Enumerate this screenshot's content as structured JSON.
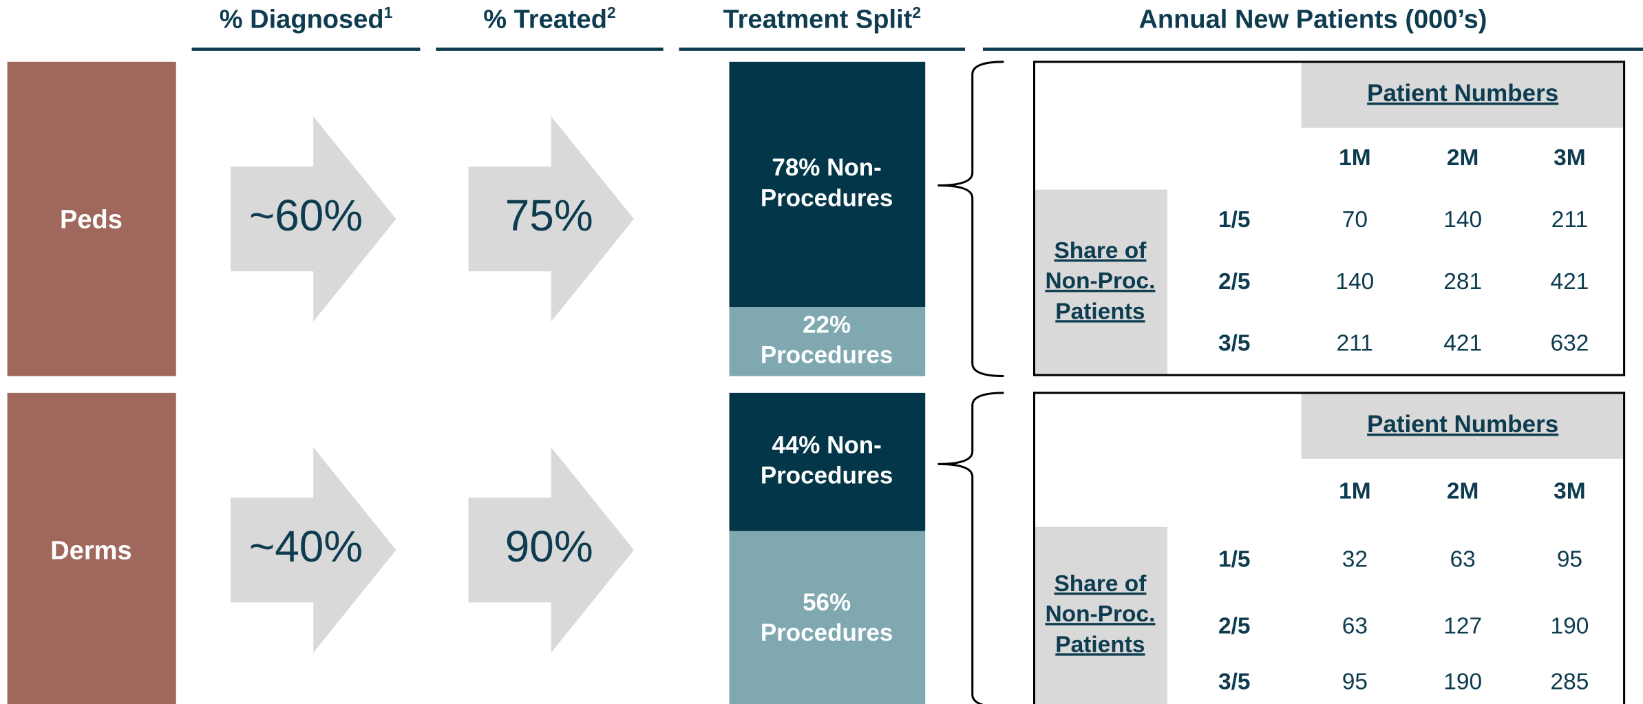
{
  "headers": [
    {
      "text": "% Diagnosed",
      "note": "1"
    },
    {
      "text": "% Treated",
      "note": "2"
    },
    {
      "text": "Treatment Split",
      "note": "2"
    },
    {
      "text": "Annual New Patients (000’s)"
    }
  ],
  "rows": [
    {
      "label": "Peds",
      "diagnosed": "~60%",
      "treated": "75%",
      "split": [
        {
          "value": 78,
          "lines": [
            "78% Non-",
            "Procedures"
          ]
        },
        {
          "value": 22,
          "lines": [
            "22%",
            "Procedures"
          ]
        }
      ],
      "table": {
        "title": "Patient Numbers",
        "columns": [
          "1M",
          "2M",
          "3M"
        ],
        "row_header": [
          "Share of",
          "Non-Proc.",
          "Patients"
        ],
        "rows": [
          {
            "label": "1/5",
            "values": [
              70,
              140,
              211
            ]
          },
          {
            "label": "2/5",
            "values": [
              140,
              281,
              421
            ]
          },
          {
            "label": "3/5",
            "values": [
              211,
              421,
              632
            ]
          }
        ]
      }
    },
    {
      "label": "Derms",
      "diagnosed": "~40%",
      "treated": "90%",
      "split": [
        {
          "value": 44,
          "lines": [
            "44% Non-",
            "Procedures"
          ]
        },
        {
          "value": 56,
          "lines": [
            "56%",
            "Procedures"
          ]
        }
      ],
      "table": {
        "title": "Patient Numbers",
        "columns": [
          "1M",
          "2M",
          "3M"
        ],
        "row_header": [
          "Share of",
          "Non-Proc.",
          "Patients"
        ],
        "rows": [
          {
            "label": "1/5",
            "values": [
              32,
              63,
              95
            ]
          },
          {
            "label": "2/5",
            "values": [
              63,
              127,
              190
            ]
          },
          {
            "label": "3/5",
            "values": [
              95,
              190,
              285
            ]
          }
        ]
      }
    }
  ]
}
